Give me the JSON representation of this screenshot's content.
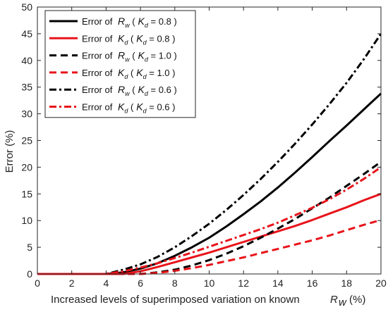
{
  "chart_data": {
    "type": "line",
    "xlabel": "Increased levels of superimposed variation on known",
    "xlabel_symbol": "R",
    "xlabel_subscript": "w",
    "xlabel_unit": "(%)",
    "ylabel": "Error (%)",
    "xlim": [
      0,
      20
    ],
    "ylim": [
      0,
      50
    ],
    "xticks": [
      "0",
      "2",
      "4",
      "6",
      "8",
      "10",
      "12",
      "14",
      "16",
      "18",
      "20"
    ],
    "yticks": [
      "0",
      "5",
      "10",
      "15",
      "20",
      "25",
      "30",
      "35",
      "40",
      "45",
      "50"
    ],
    "grid": false,
    "legend_position": "top-left",
    "series": [
      {
        "name": "Error of  Rw (  Kd = 0.8 )",
        "legend": {
          "prefix": "Error of",
          "sym": "R",
          "sub": "w",
          "k": "K",
          "ksub": "d",
          "val": " = 0.8 )"
        },
        "color": "#000000",
        "dash": "solid",
        "x": [
          0,
          4,
          5,
          6,
          7,
          8,
          9,
          10,
          11,
          12,
          13,
          14,
          15,
          16,
          17,
          18,
          19,
          20
        ],
        "y": [
          0,
          0,
          0.3,
          1.0,
          2.0,
          3.4,
          5.0,
          6.8,
          8.9,
          11.2,
          13.6,
          16.2,
          19.0,
          21.9,
          24.9,
          27.8,
          30.8,
          33.8
        ]
      },
      {
        "name": "Error of  Kd (  Kd = 0.8 )",
        "legend": {
          "prefix": "Error of",
          "sym": "K",
          "sub": "d",
          "k": "K",
          "ksub": "d",
          "val": " = 0.8 )"
        },
        "color": "#e8141b",
        "dash": "solid",
        "x": [
          0,
          5,
          6,
          7,
          8,
          9,
          10,
          11,
          12,
          13,
          14,
          15,
          16,
          17,
          18,
          19,
          20
        ],
        "y": [
          0,
          0,
          0.5,
          1.3,
          2.2,
          3.1,
          4.0,
          5.0,
          6.0,
          7.0,
          8.0,
          9.0,
          10.1,
          11.3,
          12.5,
          13.8,
          15.0
        ]
      },
      {
        "name": "Error of  Rw (  Kd = 1.0 )",
        "legend": {
          "prefix": "Error of",
          "sym": "R",
          "sub": "w",
          "k": "K",
          "ksub": "d",
          "val": " = 1.0 )"
        },
        "color": "#000000",
        "dash": "dashed",
        "x": [
          0,
          6,
          7,
          8,
          9,
          10,
          11,
          12,
          13,
          14,
          15,
          16,
          17,
          18,
          19,
          20
        ],
        "y": [
          0,
          0,
          0.3,
          0.8,
          1.6,
          2.6,
          3.8,
          5.2,
          6.8,
          8.5,
          10.3,
          12.3,
          14.3,
          16.5,
          18.7,
          21.0
        ]
      },
      {
        "name": "Error of  Kd (  Kd = 1.0 )",
        "legend": {
          "prefix": "Error of",
          "sym": "K",
          "sub": "d",
          "k": "K",
          "ksub": "d",
          "val": " = 1.0 )"
        },
        "color": "#e8141b",
        "dash": "dashed",
        "x": [
          0,
          6,
          7,
          8,
          9,
          10,
          11,
          12,
          13,
          14,
          15,
          16,
          17,
          18,
          19,
          20
        ],
        "y": [
          0,
          0,
          0.2,
          0.6,
          1.1,
          1.7,
          2.4,
          3.1,
          3.9,
          4.7,
          5.5,
          6.3,
          7.2,
          8.2,
          9.2,
          10.1
        ]
      },
      {
        "name": "Error of  Rw (  Kd = 0.6 )",
        "legend": {
          "prefix": "Error of",
          "sym": "R",
          "sub": "w",
          "k": "K",
          "ksub": "d",
          "val": " = 0.6 )"
        },
        "color": "#000000",
        "dash": "dashdot",
        "x": [
          0,
          4,
          5,
          6,
          7,
          8,
          9,
          10,
          11,
          12,
          13,
          14,
          15,
          16,
          17,
          18,
          19,
          20
        ],
        "y": [
          0,
          0,
          0.8,
          1.8,
          3.2,
          5.0,
          7.1,
          9.4,
          12.0,
          14.8,
          17.8,
          21.0,
          24.4,
          28.0,
          31.8,
          35.8,
          40.2,
          45.0
        ]
      },
      {
        "name": "Error of  Kd (  Kd = 0.6 )",
        "legend": {
          "prefix": "Error of",
          "sym": "K",
          "sub": "d",
          "k": "K",
          "ksub": "d",
          "val": " = 0.6 )"
        },
        "color": "#e8141b",
        "dash": "dashdot",
        "x": [
          0,
          4,
          5,
          6,
          7,
          8,
          9,
          10,
          11,
          12,
          13,
          14,
          15,
          16,
          17,
          18,
          19,
          20
        ],
        "y": [
          0,
          0,
          0.5,
          1.2,
          2.0,
          3.0,
          4.0,
          5.1,
          6.2,
          7.3,
          8.4,
          9.6,
          11.0,
          12.4,
          14.0,
          15.8,
          17.8,
          20.0
        ]
      }
    ]
  }
}
